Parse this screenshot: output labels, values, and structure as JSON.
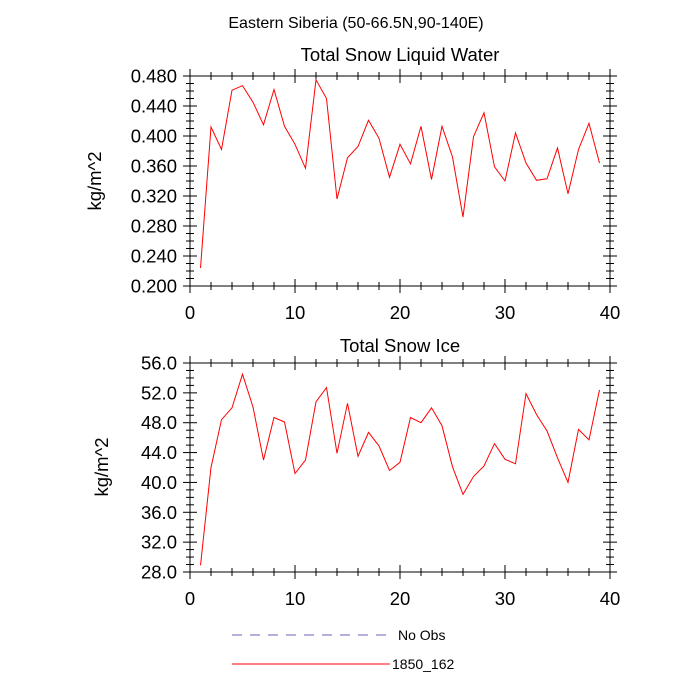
{
  "figure": {
    "title": "Eastern Siberia (50-66.5N,90-140E)"
  },
  "chart_data": [
    {
      "type": "line",
      "title": "Total Snow Liquid Water",
      "xlabel": "",
      "ylabel": "kg/m^2",
      "xlim": [
        0,
        40
      ],
      "ylim": [
        0.2,
        0.48
      ],
      "xticks": [
        "0",
        "10",
        "20",
        "30",
        "40"
      ],
      "yticks": [
        "0.200",
        "0.240",
        "0.280",
        "0.320",
        "0.360",
        "0.400",
        "0.440",
        "0.480"
      ],
      "x": [
        1,
        2,
        3,
        4,
        5,
        6,
        7,
        8,
        9,
        10,
        11,
        12,
        13,
        14,
        15,
        16,
        17,
        18,
        19,
        20,
        21,
        22,
        23,
        24,
        25,
        26,
        27,
        28,
        29,
        30,
        31,
        32,
        33,
        34,
        35,
        36,
        37,
        38,
        39
      ],
      "series": [
        {
          "name": "1850_162",
          "color": "#ff0000",
          "values": [
            0.224,
            0.412,
            0.382,
            0.461,
            0.467,
            0.445,
            0.415,
            0.462,
            0.413,
            0.389,
            0.357,
            0.475,
            0.45,
            0.316,
            0.371,
            0.386,
            0.421,
            0.397,
            0.345,
            0.389,
            0.363,
            0.413,
            0.342,
            0.413,
            0.372,
            0.292,
            0.399,
            0.431,
            0.359,
            0.34,
            0.404,
            0.364,
            0.341,
            0.343,
            0.384,
            0.323,
            0.382,
            0.417,
            0.364
          ]
        }
      ]
    },
    {
      "type": "line",
      "title": "Total Snow Ice",
      "xlabel": "",
      "ylabel": "kg/m^2",
      "xlim": [
        0,
        40
      ],
      "ylim": [
        28,
        56
      ],
      "xticks": [
        "0",
        "10",
        "20",
        "30",
        "40"
      ],
      "yticks": [
        "28.0",
        "32.0",
        "36.0",
        "40.0",
        "44.0",
        "48.0",
        "52.0",
        "56.0"
      ],
      "x": [
        1,
        2,
        3,
        4,
        5,
        6,
        7,
        8,
        9,
        10,
        11,
        12,
        13,
        14,
        15,
        16,
        17,
        18,
        19,
        20,
        21,
        22,
        23,
        24,
        25,
        26,
        27,
        28,
        29,
        30,
        31,
        32,
        33,
        34,
        35,
        36,
        37,
        38,
        39
      ],
      "series": [
        {
          "name": "1850_162",
          "color": "#ff0000",
          "values": [
            28.9,
            42.0,
            48.4,
            50.0,
            54.5,
            50.1,
            43.0,
            48.7,
            48.1,
            41.2,
            43.0,
            50.8,
            52.7,
            43.9,
            50.6,
            43.5,
            46.7,
            44.9,
            41.6,
            42.7,
            48.7,
            48.0,
            50.0,
            47.6,
            42.1,
            38.4,
            40.8,
            42.2,
            45.2,
            43.1,
            42.5,
            51.9,
            49.1,
            46.9,
            43.3,
            40.0,
            47.1,
            45.7,
            52.4
          ]
        }
      ]
    }
  ],
  "legend": {
    "placement": "bottom",
    "entries": [
      {
        "label": "No Obs",
        "color": "#6666bb",
        "style": "dashed"
      },
      {
        "label": "1850_162",
        "color": "#ff0000",
        "style": "solid"
      }
    ]
  }
}
